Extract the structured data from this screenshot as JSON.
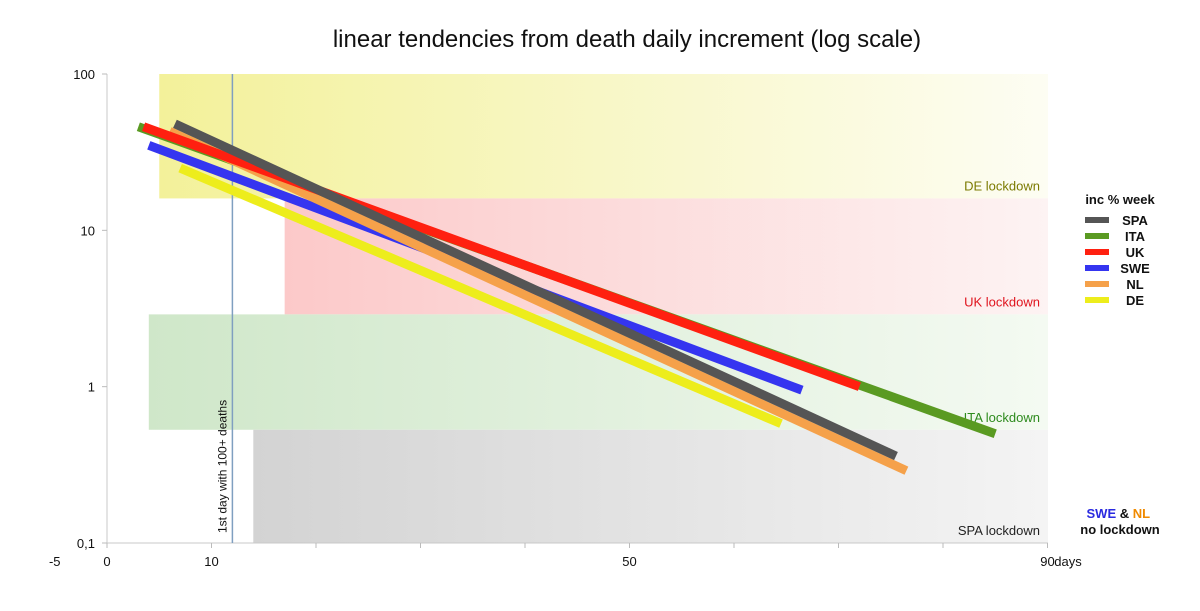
{
  "chart_data": {
    "type": "line",
    "title": "linear tendencies from death daily increment (log scale)",
    "xlabel": "days",
    "ylabel": "",
    "log_y": true,
    "xlim": [
      -5,
      93
    ],
    "ylim": [
      0.1,
      100
    ],
    "x_ticks": [
      {
        "value": -5,
        "label": "-5"
      },
      {
        "value": 0,
        "label": "0"
      },
      {
        "value": 10,
        "label": "10"
      },
      {
        "value": 50,
        "label": "50"
      },
      {
        "value": 90,
        "label": "90"
      }
    ],
    "y_ticks": [
      {
        "value": 100,
        "label": "100"
      },
      {
        "value": 10,
        "label": "10"
      },
      {
        "value": 1,
        "label": "1"
      },
      {
        "value": 0.1,
        "label": "0,1"
      }
    ],
    "legend": {
      "title": "inc % week",
      "position": "right"
    },
    "series": [
      {
        "name": "SPA",
        "color": "#555555",
        "x": [
          6.5,
          75.5
        ],
        "y": [
          48,
          0.36
        ]
      },
      {
        "name": "ITA",
        "color": "#5a9a22",
        "x": [
          3,
          85
        ],
        "y": [
          46,
          0.5
        ]
      },
      {
        "name": "UK",
        "color": "#ff2010",
        "x": [
          3.5,
          72
        ],
        "y": [
          46,
          1.0
        ]
      },
      {
        "name": "SWE",
        "color": "#3535f0",
        "x": [
          4,
          66.5
        ],
        "y": [
          35,
          0.95
        ]
      },
      {
        "name": "NL",
        "color": "#f5a14a",
        "x": [
          6,
          76.5
        ],
        "y": [
          43,
          0.29
        ]
      },
      {
        "name": "DE",
        "color": "#eded1c",
        "x": [
          7,
          64.5
        ],
        "y": [
          25,
          0.58
        ]
      }
    ],
    "regions": [
      {
        "label": "DE lockdown",
        "color": "#7b7a00",
        "x_start": 5,
        "y_range": [
          16,
          100
        ]
      },
      {
        "label": "UK lockdown",
        "color": "#e0141e",
        "x_start": 17,
        "y_range": [
          2.9,
          16
        ]
      },
      {
        "label": "ITA lockdown",
        "color": "#2e8b1e",
        "x_start": 4,
        "y_range": [
          0.53,
          2.9
        ]
      },
      {
        "label": "SPA lockdown",
        "color": "#222222",
        "x_start": 14,
        "y_range": [
          0.1,
          0.53
        ]
      }
    ],
    "marker": {
      "label": "1st day with 100+ deaths",
      "x": 12,
      "color": "#7f9fc0"
    },
    "note": {
      "swe": "SWE",
      "amp": "&",
      "nl": "NL",
      "rest": "no lockdown",
      "swe_color": "#2a2ae0",
      "nl_color": "#f08a00"
    }
  }
}
